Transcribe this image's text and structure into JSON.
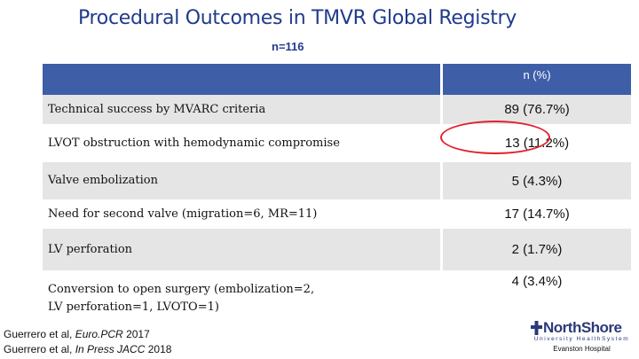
{
  "title": "Procedural Outcomes in TMVR Global Registry",
  "subtitle": "n=116",
  "table": {
    "header": "n (%)",
    "rows": [
      {
        "label": "Technical success by MVARC criteria",
        "value": "89 (76.7%)"
      },
      {
        "label": "LVOT obstruction with hemodynamic compromise",
        "value": "13 (11.2%)"
      },
      {
        "label": "Valve embolization",
        "value": "5 (4.3%)"
      },
      {
        "label": "Need for second valve (migration=6, MR=11)",
        "value": "17 (14.7%)"
      },
      {
        "label": "LV perforation",
        "value": "2 (1.7%)"
      },
      {
        "label_line1": "Conversion to open surgery (embolization=2,",
        "label_line2": "LV perforation=1, LVOTO=1)",
        "value": "4 (3.4%)"
      }
    ]
  },
  "highlight_color": "#e0212e",
  "references": [
    {
      "prefix": "Guerrero et al, ",
      "journal": "Euro.PCR",
      "suffix": " 2017"
    },
    {
      "prefix": "Guerrero et al, ",
      "journal": "In Press JACC",
      "suffix": " 2018"
    }
  ],
  "logo": {
    "name": "NorthShore",
    "tagline": "University HealthSystem",
    "hospital": "Evanston Hospital"
  }
}
